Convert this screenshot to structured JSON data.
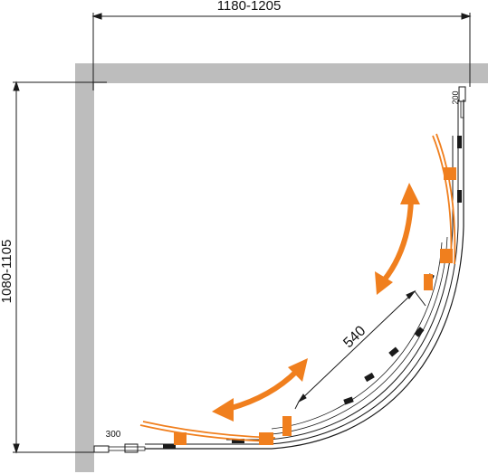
{
  "dimensions": {
    "width_label": "1180-1205",
    "height_label": "1080-1105",
    "door_opening_label": "540",
    "side_offset_top_label": "200",
    "side_offset_bottom_label": "300"
  },
  "colors": {
    "wall": "#bdbdbd",
    "line": "#1a1a1a",
    "door_highlight": "#f07f1e",
    "background": "#ffffff"
  }
}
